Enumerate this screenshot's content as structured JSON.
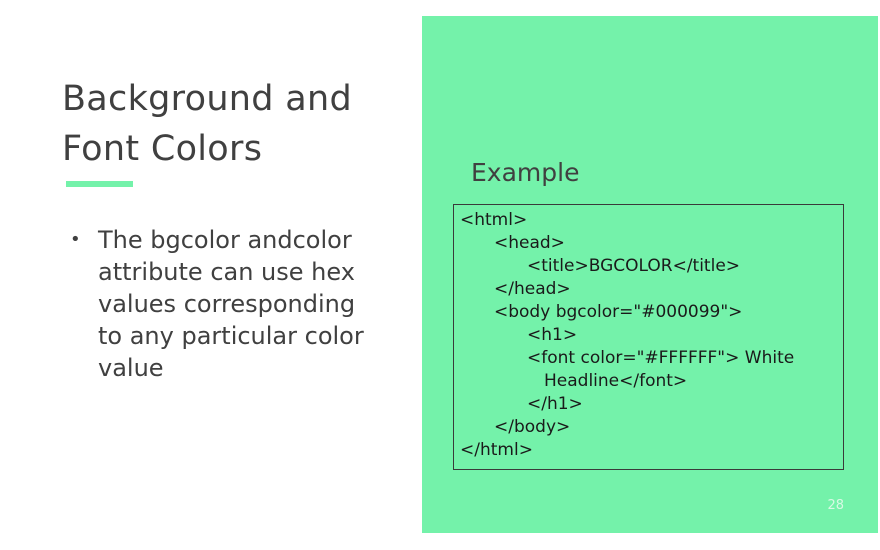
{
  "slide": {
    "title_lines": [
      "Background and",
      "Font Colors"
    ],
    "bullets": [
      {
        "lines": [
          "The bgcolor andcolor",
          "attribute can use hex",
          "values corresponding",
          "to any particular color",
          "value"
        ]
      }
    ],
    "example_label": "Example",
    "code_lines": [
      "<html>",
      "<head>",
      "<title>BGCOLOR</title>",
      "</head>",
      "<body bgcolor=\"#000099\">",
      "<h1>",
      "<font color=\"#FFFFFF\"> White",
      "Headline</font>",
      "</h1>",
      "</body>",
      "</html>"
    ],
    "page_number": "28"
  },
  "colors": {
    "accent": "#74f2aa",
    "text": "#404040",
    "code_border": "#3a3a3a"
  }
}
